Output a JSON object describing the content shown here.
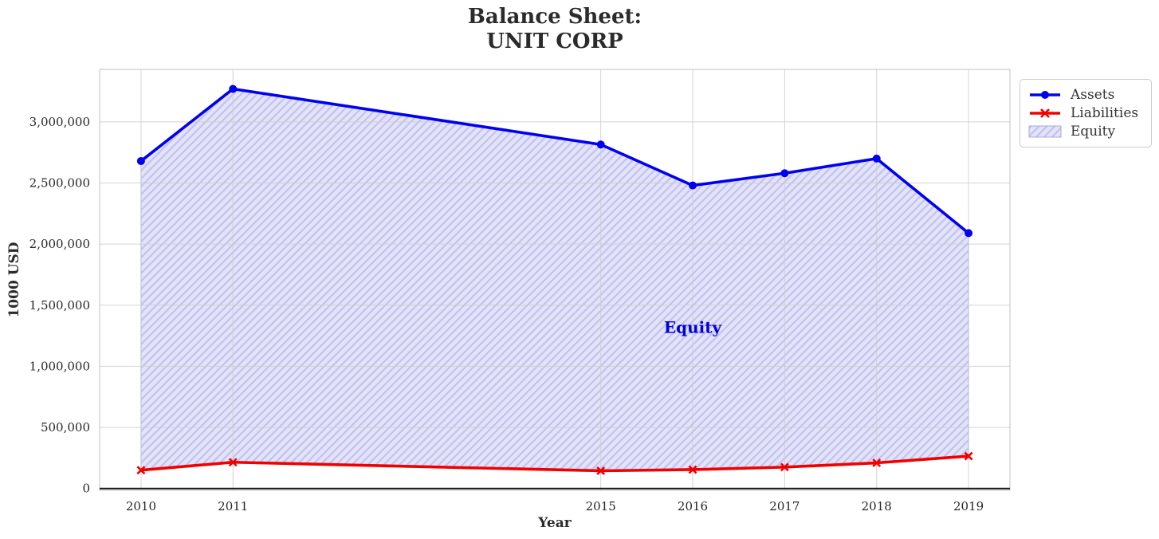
{
  "title": {
    "line1": "Balance Sheet:",
    "line2": "UNIT CORP"
  },
  "chart_data": {
    "type": "line",
    "title": "Balance Sheet: UNIT CORP",
    "xlabel": "Year",
    "ylabel": "1000 USD",
    "x": [
      2010,
      2011,
      2015,
      2016,
      2017,
      2018,
      2019
    ],
    "series": [
      {
        "name": "Assets",
        "color": "#0000f2",
        "marker": "circle",
        "values": [
          2680000,
          3270000,
          2815000,
          2480000,
          2580000,
          2700000,
          2090000
        ]
      },
      {
        "name": "Liabilities",
        "color": "#f20000",
        "marker": "x",
        "values": [
          150000,
          215000,
          145000,
          155000,
          175000,
          210000,
          265000
        ]
      }
    ],
    "fill_between": {
      "label": "Equity",
      "lower_series": "Liabilities",
      "upper_series": "Assets",
      "facecolor": "#e4e4f9",
      "hatch": "//",
      "hatch_color": "#c3c3ef",
      "edge_color": "#a9a9e8"
    },
    "annotation": {
      "text": "Equity",
      "x": 2016,
      "y": 1320000,
      "color": "#0000dd"
    },
    "xlim": [
      2009.55,
      2019.45
    ],
    "ylim": [
      -15000,
      3430000
    ],
    "xticks": [
      2010,
      2011,
      2015,
      2016,
      2017,
      2018,
      2019
    ],
    "xtick_labels": [
      "2010",
      "2011",
      "2015",
      "2016",
      "2017",
      "2018",
      "2019"
    ],
    "yticks": [
      0,
      500000,
      1000000,
      1500000,
      2000000,
      2500000,
      3000000
    ],
    "ytick_labels": [
      "0",
      "500,000",
      "1,000,000",
      "1,500,000",
      "2,000,000",
      "2,500,000",
      "3,000,000"
    ],
    "grid": true,
    "grid_color": "#cdcdd2",
    "spine_color": "#cccccc",
    "zero_line_color": "#1a1a1a",
    "tick_color": "#262626",
    "legend_position": "upper-right-outside",
    "legend_entries": [
      "Assets",
      "Liabilities",
      "Equity"
    ]
  }
}
